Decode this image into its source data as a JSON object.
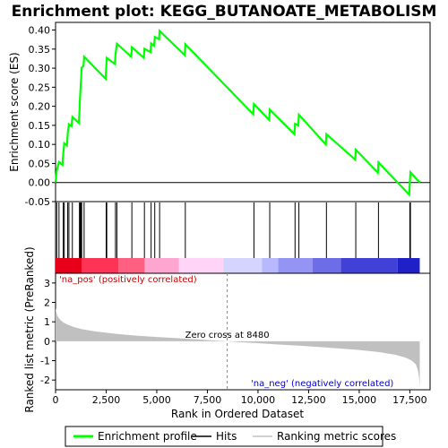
{
  "chart_data": {
    "type": "line",
    "title": "Enrichment plot: KEGG_BUTANOATE_METABOLISM",
    "top_panel": {
      "ylabel": "Enrichment score (ES)",
      "ylim": [
        -0.05,
        0.42
      ],
      "yticks": [
        "-0.05",
        "0.00",
        "0.05",
        "0.10",
        "0.15",
        "0.20",
        "0.25",
        "0.30",
        "0.35",
        "0.40"
      ],
      "ytick_values": [
        -0.05,
        0,
        0.05,
        0.1,
        0.15,
        0.2,
        0.25,
        0.3,
        0.35,
        0.4
      ],
      "series_name": "Enrichment profile",
      "color": "#00ff00",
      "points": [
        [
          0,
          0.0
        ],
        [
          60,
          0.032
        ],
        [
          170,
          0.054
        ],
        [
          340,
          0.046
        ],
        [
          380,
          0.076
        ],
        [
          430,
          0.103
        ],
        [
          560,
          0.097
        ],
        [
          600,
          0.129
        ],
        [
          660,
          0.153
        ],
        [
          790,
          0.148
        ],
        [
          830,
          0.172
        ],
        [
          1150,
          0.156
        ],
        [
          1180,
          0.186
        ],
        [
          1200,
          0.213
        ],
        [
          1230,
          0.243
        ],
        [
          1260,
          0.272
        ],
        [
          1290,
          0.301
        ],
        [
          1380,
          0.306
        ],
        [
          1410,
          0.33
        ],
        [
          2480,
          0.272
        ],
        [
          2500,
          0.3
        ],
        [
          2530,
          0.327
        ],
        [
          2930,
          0.311
        ],
        [
          2960,
          0.337
        ],
        [
          3030,
          0.364
        ],
        [
          3740,
          0.33
        ],
        [
          3770,
          0.355
        ],
        [
          4360,
          0.327
        ],
        [
          4390,
          0.351
        ],
        [
          4690,
          0.342
        ],
        [
          4720,
          0.365
        ],
        [
          4870,
          0.359
        ],
        [
          4900,
          0.382
        ],
        [
          5110,
          0.376
        ],
        [
          5140,
          0.398
        ],
        [
          6380,
          0.334
        ],
        [
          6410,
          0.363
        ],
        [
          9770,
          0.179
        ],
        [
          9800,
          0.206
        ],
        [
          10550,
          0.164
        ],
        [
          10580,
          0.191
        ],
        [
          11800,
          0.127
        ],
        [
          11830,
          0.154
        ],
        [
          11990,
          0.15
        ],
        [
          12020,
          0.178
        ],
        [
          13350,
          0.1
        ],
        [
          13380,
          0.127
        ],
        [
          14800,
          0.06
        ],
        [
          14830,
          0.086
        ],
        [
          15920,
          0.026
        ],
        [
          15950,
          0.053
        ],
        [
          17470,
          -0.032
        ],
        [
          17500,
          0.0
        ],
        [
          17530,
          0.027
        ],
        [
          17990,
          0.0
        ]
      ]
    },
    "hits_panel": {
      "series_name": "Hits",
      "hit_ranks": [
        60,
        170,
        380,
        430,
        600,
        660,
        830,
        1180,
        1200,
        1230,
        1260,
        1290,
        1410,
        2500,
        2530,
        2960,
        3030,
        3770,
        4390,
        4720,
        4900,
        5140,
        6410,
        9800,
        10580,
        11830,
        12020,
        13380,
        14830,
        15950,
        17500,
        17530
      ],
      "bar_colors": [
        "#e8001a",
        "#ff3355",
        "#ff5f80",
        "#ffa6d0",
        "#ffd4f6",
        "#d4d4ff",
        "#b8b8ff",
        "#9494f4",
        "#6d6de8",
        "#4141d8",
        "#2020c8"
      ],
      "bar_breaks": [
        0,
        1300,
        3100,
        4400,
        6100,
        8300,
        10200,
        11000,
        12700,
        14100,
        16900,
        17990
      ]
    },
    "bottom_panel": {
      "ylabel": "Ranked list metric (PreRanked)",
      "xlabel": "Rank in Ordered Dataset",
      "ylim": [
        -2.5,
        3.5
      ],
      "yticks": [
        "-2",
        "-1",
        "0",
        "1",
        "2",
        "3"
      ],
      "ytick_values": [
        -2,
        -1,
        0,
        1,
        2,
        3
      ],
      "xlim": [
        0,
        18500
      ],
      "xticks": [
        "0",
        "2,500",
        "5,000",
        "7,500",
        "10,000",
        "12,500",
        "15,000",
        "17,500"
      ],
      "xtick_values": [
        0,
        2500,
        5000,
        7500,
        10000,
        12500,
        15000,
        17500
      ],
      "series_name": "Ranking metric scores",
      "color": "#c0c0c0",
      "metric_points": [
        [
          0,
          1.72
        ],
        [
          30,
          1.55
        ],
        [
          80,
          1.35
        ],
        [
          150,
          1.2
        ],
        [
          250,
          1.08
        ],
        [
          400,
          0.96
        ],
        [
          600,
          0.85
        ],
        [
          900,
          0.73
        ],
        [
          1300,
          0.62
        ],
        [
          2000,
          0.5
        ],
        [
          3000,
          0.38
        ],
        [
          4000,
          0.29
        ],
        [
          5000,
          0.22
        ],
        [
          6000,
          0.16
        ],
        [
          7000,
          0.1
        ],
        [
          8000,
          0.03
        ],
        [
          8480,
          0.0
        ],
        [
          9000,
          -0.04
        ],
        [
          10000,
          -0.1
        ],
        [
          11000,
          -0.17
        ],
        [
          12000,
          -0.23
        ],
        [
          13000,
          -0.3
        ],
        [
          14000,
          -0.37
        ],
        [
          15000,
          -0.45
        ],
        [
          16000,
          -0.56
        ],
        [
          16800,
          -0.7
        ],
        [
          17300,
          -0.85
        ],
        [
          17600,
          -1.0
        ],
        [
          17800,
          -1.2
        ],
        [
          17900,
          -1.5
        ],
        [
          17960,
          -1.9
        ],
        [
          17990,
          -2.4
        ]
      ],
      "zero_cross_rank": 8480,
      "zero_cross_label": "Zero cross at 8480",
      "pos_label": "'na_pos' (positively correlated)",
      "neg_label": "'na_neg' (negatively correlated)",
      "pos_color": "#cc0000",
      "neg_color": "#0000cc"
    },
    "legend": {
      "items": [
        {
          "label": "Enrichment profile",
          "color": "#00ff00"
        },
        {
          "label": "Hits",
          "color": "#000000"
        },
        {
          "label": "Ranking metric scores",
          "color": "#c0c0c0"
        }
      ]
    }
  }
}
